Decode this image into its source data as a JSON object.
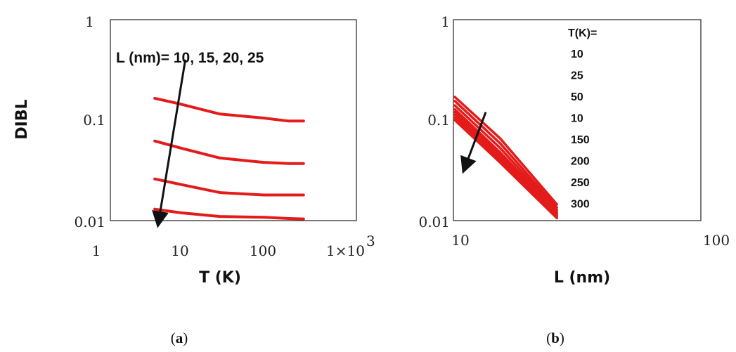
{
  "chart_data": [
    {
      "type": "line",
      "panel_label": "a",
      "xlabel": "T (K)",
      "ylabel": "DIBL",
      "xscale": "log",
      "yscale": "log",
      "xlim": [
        1,
        1000
      ],
      "ylim": [
        0.01,
        1
      ],
      "x_ticks": [
        "1",
        "10",
        "100",
        "1×10"
      ],
      "x_tick_sup": "3",
      "y_ticks": [
        "0.01",
        "0.1",
        "1"
      ],
      "annotation": "L (nm)= 10, 15, 20, 25",
      "series_color": "#e31b1b",
      "series": [
        {
          "x": [
            5,
            10,
            30,
            100,
            200,
            300
          ],
          "y": [
            0.165,
            0.145,
            0.115,
            0.105,
            0.098,
            0.098
          ]
        },
        {
          "x": [
            5,
            10,
            30,
            100,
            200,
            300
          ],
          "y": [
            0.062,
            0.053,
            0.042,
            0.038,
            0.037,
            0.037
          ]
        },
        {
          "x": [
            5,
            10,
            30,
            100,
            200,
            300
          ],
          "y": [
            0.026,
            0.023,
            0.019,
            0.018,
            0.018,
            0.018
          ]
        },
        {
          "x": [
            5,
            10,
            30,
            100,
            200,
            300
          ],
          "y": [
            0.013,
            0.012,
            0.011,
            0.0108,
            0.0105,
            0.0104
          ]
        }
      ],
      "arrow": {
        "from": {
          "x": 11.6,
          "y": 0.4
        },
        "to": {
          "x": 5.6,
          "y": 0.0102
        }
      }
    },
    {
      "type": "line",
      "panel_label": "b",
      "xlabel": "L (nm)",
      "ylabel": "",
      "xscale": "log",
      "yscale": "log",
      "xlim": [
        10,
        100
      ],
      "ylim": [
        0.01,
        1
      ],
      "x_ticks": [
        "10",
        "100"
      ],
      "y_ticks": [
        "0.01",
        "0.1",
        "1"
      ],
      "legend_title": "T(K)=",
      "legend_items": [
        "10",
        "25",
        "50",
        "10",
        "150",
        "200",
        "250",
        "300"
      ],
      "series_color": "#e31b1b",
      "series": [
        {
          "x": [
            10,
            15,
            25
          ],
          "y": [
            0.17,
            0.066,
            0.0145
          ]
        },
        {
          "x": [
            10,
            15,
            25
          ],
          "y": [
            0.155,
            0.059,
            0.0135
          ]
        },
        {
          "x": [
            10,
            15,
            25
          ],
          "y": [
            0.14,
            0.053,
            0.0128
          ]
        },
        {
          "x": [
            10,
            15,
            25
          ],
          "y": [
            0.128,
            0.048,
            0.0122
          ]
        },
        {
          "x": [
            10,
            15,
            25
          ],
          "y": [
            0.12,
            0.045,
            0.0118
          ]
        },
        {
          "x": [
            10,
            15,
            25
          ],
          "y": [
            0.113,
            0.042,
            0.0114
          ]
        },
        {
          "x": [
            10,
            15,
            25
          ],
          "y": [
            0.106,
            0.04,
            0.011
          ]
        },
        {
          "x": [
            10,
            15,
            25
          ],
          "y": [
            0.1,
            0.038,
            0.0106
          ]
        }
      ],
      "arrow": {
        "from": {
          "x": 13.2,
          "y": 0.12
        },
        "to": {
          "x": 11.0,
          "y": 0.035
        }
      }
    }
  ]
}
